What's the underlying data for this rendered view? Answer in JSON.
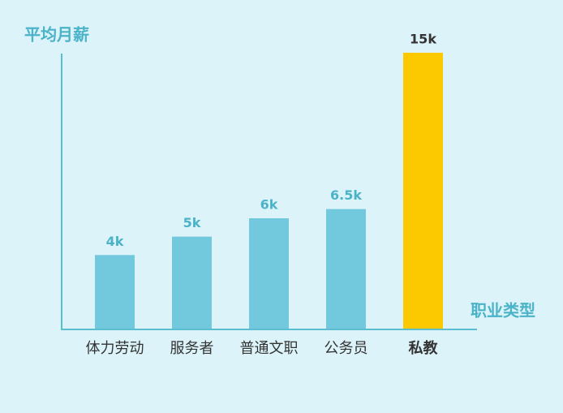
{
  "chart_data": {
    "type": "bar",
    "y_label": "平均月薪",
    "x_label": "职业类型",
    "categories": [
      "体力劳动",
      "服务者",
      "普通文职",
      "公务员",
      "私教"
    ],
    "values": [
      4,
      5,
      6,
      6.5,
      15
    ],
    "value_labels": [
      "4k",
      "5k",
      "6k",
      "6.5k",
      "15k"
    ],
    "colors": [
      "#72c8dc",
      "#72c8dc",
      "#72c8dc",
      "#72c8dc",
      "#fcc800"
    ],
    "value_label_colors": [
      "#4bb3c8",
      "#4bb3c8",
      "#4bb3c8",
      "#4bb3c8",
      "#333333"
    ],
    "highlight": 4,
    "ylim": [
      0,
      15
    ]
  }
}
